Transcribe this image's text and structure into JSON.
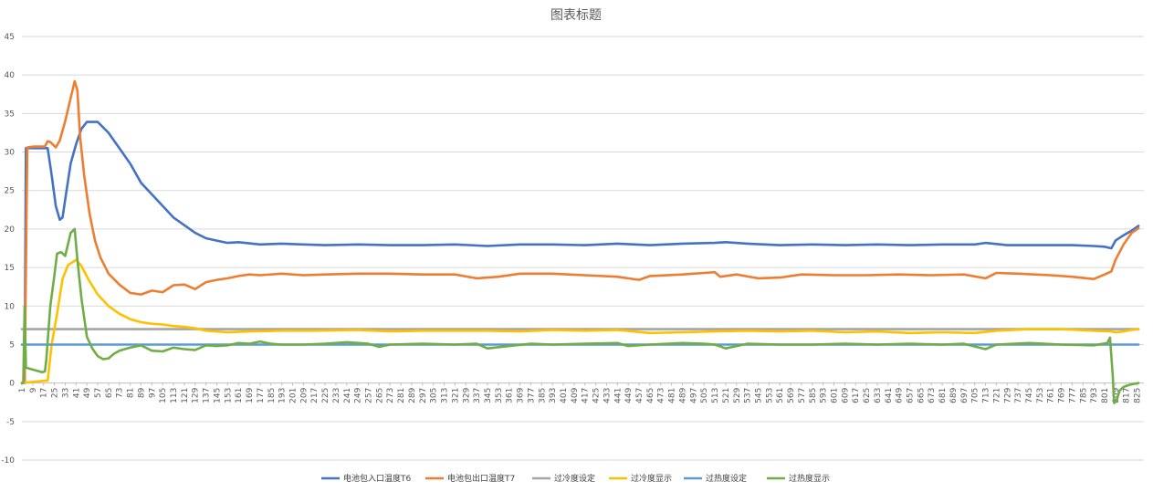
{
  "chart_data": {
    "type": "line",
    "title": "图表标题",
    "xlabel": "",
    "ylabel": "",
    "ylim": [
      -10,
      45
    ],
    "yticks": [
      -10,
      -5,
      0,
      5,
      10,
      15,
      20,
      25,
      30,
      35,
      40,
      45
    ],
    "xlim": [
      1,
      830
    ],
    "x_tick_start": 1,
    "x_tick_step": 8,
    "x_tick_end": 825,
    "grid": "horizontal",
    "legend_position": "bottom",
    "series": [
      {
        "name": "电池包入口温度T6",
        "color": "#4472C4",
        "points": [
          [
            1,
            0
          ],
          [
            3,
            0
          ],
          [
            4,
            30.5
          ],
          [
            10,
            30.5
          ],
          [
            20,
            30.5
          ],
          [
            23,
            27
          ],
          [
            26,
            23
          ],
          [
            29,
            21.2
          ],
          [
            31,
            21.5
          ],
          [
            34,
            25
          ],
          [
            37,
            28.5
          ],
          [
            41,
            31
          ],
          [
            45,
            33
          ],
          [
            49,
            33.9
          ],
          [
            57,
            33.9
          ],
          [
            65,
            32.5
          ],
          [
            73,
            30.5
          ],
          [
            81,
            28.5
          ],
          [
            89,
            26
          ],
          [
            97,
            24.5
          ],
          [
            105,
            23
          ],
          [
            113,
            21.5
          ],
          [
            121,
            20.5
          ],
          [
            129,
            19.5
          ],
          [
            137,
            18.8
          ],
          [
            145,
            18.5
          ],
          [
            153,
            18.2
          ],
          [
            161,
            18.3
          ],
          [
            177,
            18
          ],
          [
            193,
            18.1
          ],
          [
            209,
            18
          ],
          [
            225,
            17.9
          ],
          [
            249,
            18
          ],
          [
            273,
            17.9
          ],
          [
            297,
            17.9
          ],
          [
            321,
            18
          ],
          [
            345,
            17.8
          ],
          [
            369,
            18
          ],
          [
            393,
            18
          ],
          [
            417,
            17.9
          ],
          [
            441,
            18.1
          ],
          [
            465,
            17.9
          ],
          [
            489,
            18.1
          ],
          [
            513,
            18.2
          ],
          [
            521,
            18.3
          ],
          [
            537,
            18.1
          ],
          [
            561,
            17.9
          ],
          [
            585,
            18
          ],
          [
            609,
            17.9
          ],
          [
            633,
            18
          ],
          [
            657,
            17.9
          ],
          [
            681,
            18
          ],
          [
            705,
            18
          ],
          [
            713,
            18.2
          ],
          [
            729,
            17.9
          ],
          [
            753,
            17.9
          ],
          [
            777,
            17.9
          ],
          [
            793,
            17.8
          ],
          [
            801,
            17.7
          ],
          [
            806,
            17.5
          ],
          [
            809,
            18.5
          ],
          [
            815,
            19.2
          ],
          [
            821,
            19.8
          ],
          [
            826,
            20.4
          ]
        ]
      },
      {
        "name": "电池包出口温度T7",
        "color": "#ED7D31",
        "points": [
          [
            1,
            0
          ],
          [
            3,
            0
          ],
          [
            5,
            30.6
          ],
          [
            10,
            30.7
          ],
          [
            18,
            30.7
          ],
          [
            20,
            31.4
          ],
          [
            22,
            31.3
          ],
          [
            26,
            30.6
          ],
          [
            29,
            31.5
          ],
          [
            33,
            34
          ],
          [
            37,
            37
          ],
          [
            40,
            39.2
          ],
          [
            42,
            38
          ],
          [
            44,
            32
          ],
          [
            47,
            27
          ],
          [
            51,
            22
          ],
          [
            55,
            18.5
          ],
          [
            59,
            16.3
          ],
          [
            65,
            14.2
          ],
          [
            73,
            12.8
          ],
          [
            81,
            11.7
          ],
          [
            89,
            11.5
          ],
          [
            97,
            12
          ],
          [
            105,
            11.8
          ],
          [
            113,
            12.7
          ],
          [
            121,
            12.8
          ],
          [
            129,
            12.2
          ],
          [
            137,
            13.1
          ],
          [
            145,
            13.4
          ],
          [
            153,
            13.6
          ],
          [
            161,
            13.9
          ],
          [
            169,
            14.1
          ],
          [
            177,
            14
          ],
          [
            193,
            14.2
          ],
          [
            209,
            14
          ],
          [
            225,
            14.1
          ],
          [
            249,
            14.2
          ],
          [
            273,
            14.2
          ],
          [
            297,
            14.1
          ],
          [
            321,
            14.1
          ],
          [
            337,
            13.6
          ],
          [
            353,
            13.8
          ],
          [
            369,
            14.2
          ],
          [
            393,
            14.2
          ],
          [
            417,
            14
          ],
          [
            441,
            13.8
          ],
          [
            457,
            13.4
          ],
          [
            465,
            13.9
          ],
          [
            489,
            14.1
          ],
          [
            505,
            14.3
          ],
          [
            513,
            14.4
          ],
          [
            517,
            13.8
          ],
          [
            529,
            14.1
          ],
          [
            545,
            13.6
          ],
          [
            561,
            13.7
          ],
          [
            577,
            14.1
          ],
          [
            601,
            14
          ],
          [
            625,
            14
          ],
          [
            649,
            14.1
          ],
          [
            673,
            14
          ],
          [
            697,
            14.1
          ],
          [
            713,
            13.6
          ],
          [
            721,
            14.3
          ],
          [
            737,
            14.2
          ],
          [
            761,
            14
          ],
          [
            777,
            13.8
          ],
          [
            793,
            13.5
          ],
          [
            801,
            14.1
          ],
          [
            806,
            14.5
          ],
          [
            809,
            16
          ],
          [
            815,
            18
          ],
          [
            821,
            19.5
          ],
          [
            826,
            20.1
          ]
        ]
      },
      {
        "name": "过冷度设定",
        "color": "#A5A5A5",
        "points": [
          [
            1,
            7
          ],
          [
            826,
            7
          ]
        ]
      },
      {
        "name": "过冷度显示",
        "color": "#FFC000",
        "points": [
          [
            1,
            0
          ],
          [
            18,
            0.3
          ],
          [
            20,
            0.3
          ],
          [
            23,
            5
          ],
          [
            27,
            9
          ],
          [
            31,
            13.5
          ],
          [
            35,
            15.3
          ],
          [
            41,
            16
          ],
          [
            45,
            15.2
          ],
          [
            50,
            13.5
          ],
          [
            57,
            11.5
          ],
          [
            65,
            10
          ],
          [
            73,
            9
          ],
          [
            81,
            8.3
          ],
          [
            89,
            7.9
          ],
          [
            97,
            7.7
          ],
          [
            105,
            7.6
          ],
          [
            113,
            7.4
          ],
          [
            121,
            7.3
          ],
          [
            129,
            7.1
          ],
          [
            137,
            6.8
          ],
          [
            153,
            6.6
          ],
          [
            169,
            6.7
          ],
          [
            193,
            6.8
          ],
          [
            217,
            6.8
          ],
          [
            249,
            6.9
          ],
          [
            273,
            6.7
          ],
          [
            297,
            6.8
          ],
          [
            321,
            6.8
          ],
          [
            345,
            6.8
          ],
          [
            369,
            6.7
          ],
          [
            393,
            6.9
          ],
          [
            417,
            6.8
          ],
          [
            441,
            6.9
          ],
          [
            465,
            6.5
          ],
          [
            489,
            6.6
          ],
          [
            513,
            6.7
          ],
          [
            537,
            6.8
          ],
          [
            561,
            6.7
          ],
          [
            585,
            6.8
          ],
          [
            609,
            6.6
          ],
          [
            633,
            6.7
          ],
          [
            657,
            6.5
          ],
          [
            681,
            6.6
          ],
          [
            705,
            6.5
          ],
          [
            721,
            6.8
          ],
          [
            745,
            7
          ],
          [
            769,
            7
          ],
          [
            793,
            6.8
          ],
          [
            806,
            6.7
          ],
          [
            809,
            6.6
          ],
          [
            815,
            6.7
          ],
          [
            821,
            6.9
          ],
          [
            826,
            7
          ]
        ]
      },
      {
        "name": "过热度设定",
        "color": "#5B9BD5",
        "points": [
          [
            1,
            5
          ],
          [
            826,
            5
          ]
        ]
      },
      {
        "name": "过热度显示",
        "color": "#70AD47",
        "points": [
          [
            1,
            0
          ],
          [
            2,
            0
          ],
          [
            3,
            10
          ],
          [
            4,
            2
          ],
          [
            6,
            1.9
          ],
          [
            12,
            1.6
          ],
          [
            16,
            1.4
          ],
          [
            18,
            1.5
          ],
          [
            19,
            3
          ],
          [
            22,
            10
          ],
          [
            25,
            14
          ],
          [
            27,
            16.8
          ],
          [
            30,
            17
          ],
          [
            33,
            16.5
          ],
          [
            35,
            18
          ],
          [
            37,
            19.5
          ],
          [
            40,
            20
          ],
          [
            42,
            16
          ],
          [
            45,
            11
          ],
          [
            49,
            6
          ],
          [
            53,
            4.5
          ],
          [
            57,
            3.5
          ],
          [
            61,
            3.1
          ],
          [
            65,
            3.2
          ],
          [
            69,
            3.8
          ],
          [
            73,
            4.2
          ],
          [
            81,
            4.6
          ],
          [
            89,
            4.9
          ],
          [
            97,
            4.2
          ],
          [
            105,
            4.1
          ],
          [
            113,
            4.6
          ],
          [
            121,
            4.4
          ],
          [
            129,
            4.3
          ],
          [
            137,
            4.9
          ],
          [
            145,
            4.8
          ],
          [
            153,
            4.9
          ],
          [
            161,
            5.2
          ],
          [
            169,
            5.1
          ],
          [
            177,
            5.4
          ],
          [
            185,
            5.1
          ],
          [
            193,
            5
          ],
          [
            209,
            5
          ],
          [
            225,
            5.1
          ],
          [
            241,
            5.3
          ],
          [
            257,
            5.1
          ],
          [
            265,
            4.7
          ],
          [
            273,
            5
          ],
          [
            297,
            5.1
          ],
          [
            321,
            5
          ],
          [
            337,
            5.1
          ],
          [
            345,
            4.5
          ],
          [
            361,
            4.8
          ],
          [
            377,
            5.1
          ],
          [
            393,
            5
          ],
          [
            417,
            5.1
          ],
          [
            441,
            5.2
          ],
          [
            449,
            4.8
          ],
          [
            465,
            5
          ],
          [
            489,
            5.2
          ],
          [
            505,
            5.1
          ],
          [
            513,
            5
          ],
          [
            521,
            4.5
          ],
          [
            537,
            5.1
          ],
          [
            561,
            5
          ],
          [
            585,
            5
          ],
          [
            609,
            5.1
          ],
          [
            633,
            5
          ],
          [
            657,
            5.1
          ],
          [
            681,
            5
          ],
          [
            697,
            5.1
          ],
          [
            713,
            4.4
          ],
          [
            721,
            5
          ],
          [
            745,
            5.2
          ],
          [
            769,
            5
          ],
          [
            793,
            4.9
          ],
          [
            803,
            5.2
          ],
          [
            805,
            5.9
          ],
          [
            807,
            1
          ],
          [
            808,
            -2.6
          ],
          [
            810,
            -2.2
          ],
          [
            812,
            -1
          ],
          [
            815,
            -0.5
          ],
          [
            820,
            -0.2
          ],
          [
            826,
            0
          ]
        ]
      }
    ]
  }
}
